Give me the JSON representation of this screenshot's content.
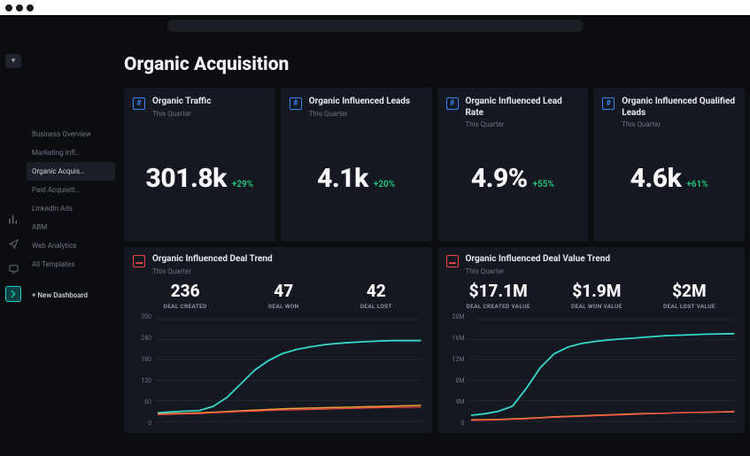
{
  "sidebar": {
    "items": [
      {
        "label": "Business Overview"
      },
      {
        "label": "Marketing Infl…"
      },
      {
        "label": "Organic Acquis…"
      },
      {
        "label": "Paid Acquisiti…"
      },
      {
        "label": "LinkedIn Ads"
      },
      {
        "label": "ABM"
      },
      {
        "label": "Web Analytics"
      },
      {
        "label": "All Templates"
      }
    ],
    "active_index": 2,
    "new_label": "+  New Dashboard"
  },
  "page": {
    "title": "Organic Acquisition"
  },
  "metrics": [
    {
      "title": "Organic Traffic",
      "subtitle": "This Quarter",
      "value": "301.8k",
      "delta": "+29%"
    },
    {
      "title": "Organic Influenced Leads",
      "subtitle": "This Quarter",
      "value": "4.1k",
      "delta": "+20%"
    },
    {
      "title": "Organic Influenced Lead Rate",
      "subtitle": "This Quarter",
      "value": "4.9%",
      "delta": "+55%"
    },
    {
      "title": "Organic Influenced Qualified Leads",
      "subtitle": "This Quarter",
      "value": "4.6k",
      "delta": "+61%"
    }
  ],
  "trends": [
    {
      "title": "Organic Influenced Deal Trend",
      "subtitle": "This Quarter",
      "stats": [
        {
          "value": "236",
          "label": "DEAL CREATED"
        },
        {
          "value": "47",
          "label": "DEAL WON"
        },
        {
          "value": "42",
          "label": "DEAL LOST"
        }
      ],
      "chart": {
        "ylabels": [
          "300",
          "240",
          "180",
          "120",
          "60",
          "0"
        ],
        "ymax": 300,
        "background": "#141820",
        "grid_color": "#2a303a",
        "series": [
          {
            "name": "created",
            "color": "#38d6c9",
            "width": 1.8,
            "points": [
              25,
              28,
              30,
              32,
              44,
              70,
              110,
              150,
              178,
              198,
              210,
              218,
              224,
              228,
              231,
              233,
              235,
              236,
              236,
              236
            ]
          },
          {
            "name": "won",
            "color": "#f0a33a",
            "width": 1.5,
            "points": [
              22,
              23,
              24,
              25,
              27,
              29,
              31,
              33,
              35,
              37,
              38,
              39,
              40,
              41,
              42,
              43,
              44,
              45,
              46,
              47
            ]
          },
          {
            "name": "lost",
            "color": "#ef4444",
            "width": 1.2,
            "points": [
              20,
              21,
              22,
              23,
              25,
              27,
              29,
              30,
              32,
              33,
              34,
              35,
              36,
              37,
              38,
              39,
              40,
              41,
              41,
              42
            ]
          }
        ]
      }
    },
    {
      "title": "Organic Influenced Deal Value Trend",
      "subtitle": "This Quarter",
      "stats": [
        {
          "value": "$17.1M",
          "label": "DEAL CREATED VALUE"
        },
        {
          "value": "$1.9M",
          "label": "DEAL WON VALUE"
        },
        {
          "value": "$2M",
          "label": "DEAL LOST VALUE"
        }
      ],
      "chart": {
        "ylabels": [
          "20M",
          "16M",
          "12M",
          "8M",
          "4M",
          "0"
        ],
        "ymax": 20,
        "background": "#141820",
        "grid_color": "#2a303a",
        "series": [
          {
            "name": "created",
            "color": "#38d6c9",
            "width": 1.8,
            "points": [
              1.2,
              1.5,
              2.0,
              3.0,
              6.5,
              10.5,
              13.2,
              14.5,
              15.2,
              15.6,
              15.9,
              16.1,
              16.3,
              16.5,
              16.7,
              16.8,
              16.9,
              17.0,
              17.05,
              17.1
            ]
          },
          {
            "name": "won",
            "color": "#f0a33a",
            "width": 1.5,
            "points": [
              0.3,
              0.35,
              0.4,
              0.5,
              0.6,
              0.75,
              0.9,
              1.0,
              1.1,
              1.2,
              1.3,
              1.4,
              1.5,
              1.55,
              1.6,
              1.7,
              1.75,
              1.8,
              1.85,
              1.9
            ]
          },
          {
            "name": "lost",
            "color": "#ef4444",
            "width": 1.2,
            "points": [
              0.2,
              0.25,
              0.3,
              0.4,
              0.5,
              0.65,
              0.8,
              0.9,
              1.0,
              1.1,
              1.2,
              1.3,
              1.4,
              1.5,
              1.6,
              1.7,
              1.8,
              1.85,
              1.9,
              2.0
            ]
          }
        ]
      }
    }
  ],
  "colors": {
    "bg": "#0b0d11",
    "card": "#141820",
    "accent_blue": "#3b82f6",
    "accent_teal": "#1ad1c6",
    "accent_red": "#ef4444",
    "positive": "#22c07a"
  }
}
